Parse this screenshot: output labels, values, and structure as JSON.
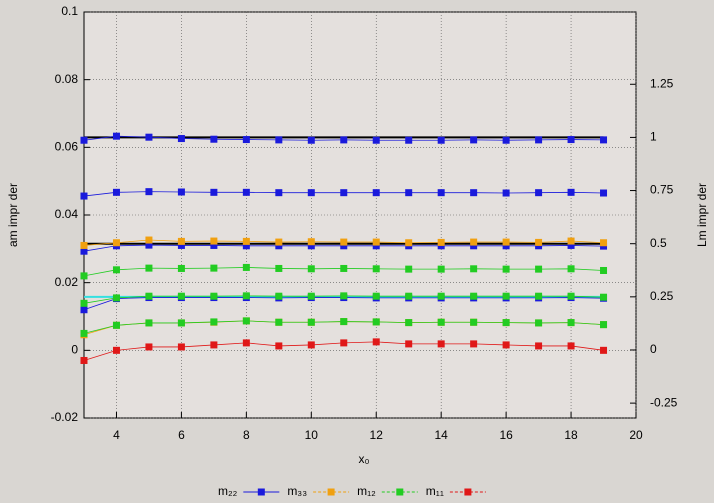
{
  "chart_data": {
    "type": "linespoints",
    "xlabel": "x₀",
    "ylabel": "am impr der",
    "y2label": "Lm impr der",
    "x": [
      3,
      4,
      5,
      6,
      7,
      8,
      9,
      10,
      11,
      12,
      13,
      14,
      15,
      16,
      17,
      18,
      19
    ],
    "xlim": [
      3,
      20
    ],
    "xticks": [
      4,
      6,
      8,
      10,
      12,
      14,
      16,
      18,
      20
    ],
    "ylim": [
      -0.02,
      0.1
    ],
    "yticks": [
      -0.02,
      0,
      0.02,
      0.04,
      0.06,
      0.08,
      0.1
    ],
    "y2lim": [
      -0.32,
      1.59
    ],
    "y2ticks": [
      -0.25,
      0,
      0.25,
      0.5,
      0.75,
      1,
      1.25
    ],
    "grid": true,
    "hlines": [
      {
        "value": 1,
        "color": "#000000"
      },
      {
        "value": 0.5,
        "color": "#000000"
      },
      {
        "value": 0.25,
        "color": "#33e0e0"
      }
    ],
    "series": [
      {
        "name": "m₂₂",
        "color": "#1a1adc",
        "values": [
          [
            0.0621,
            0.0633,
            0.063,
            0.0626,
            0.0624,
            0.0623,
            0.0622,
            0.0621,
            0.0622,
            0.0621,
            0.0621,
            0.0621,
            0.0622,
            0.0621,
            0.0622,
            0.0623,
            0.0622
          ],
          [
            0.0456,
            0.0467,
            0.0469,
            0.0468,
            0.0467,
            0.0467,
            0.0466,
            0.0466,
            0.0466,
            0.0466,
            0.0466,
            0.0466,
            0.0466,
            0.0465,
            0.0466,
            0.0467,
            0.0465
          ],
          [
            0.0293,
            0.0309,
            0.0311,
            0.031,
            0.031,
            0.0309,
            0.0309,
            0.0309,
            0.0309,
            0.0309,
            0.0309,
            0.0309,
            0.0309,
            0.0309,
            0.0309,
            0.031,
            0.0308
          ],
          [
            0.012,
            0.0153,
            0.0156,
            0.0156,
            0.0156,
            0.0156,
            0.0155,
            0.0156,
            0.0156,
            0.0155,
            0.0155,
            0.0155,
            0.0155,
            0.0155,
            0.0155,
            0.0156,
            0.0154
          ]
        ]
      },
      {
        "name": "m₃₃",
        "color": "#f0a010",
        "values": [
          [
            0.031,
            0.0318,
            0.0326,
            0.0322,
            0.0323,
            0.0322,
            0.032,
            0.0321,
            0.032,
            0.032,
            0.0318,
            0.0319,
            0.032,
            0.032,
            0.0319,
            0.0323,
            0.0318
          ],
          [
            0.0046,
            0.0074,
            0.0081,
            0.0081,
            0.0083,
            0.0087,
            0.0083,
            0.0083,
            0.0085,
            0.0084,
            0.0082,
            0.0083,
            0.0083,
            0.0082,
            0.0081,
            0.0082,
            0.0076
          ]
        ]
      },
      {
        "name": "m₁₂",
        "color": "#22cc22",
        "values": [
          [
            0.022,
            0.0238,
            0.0243,
            0.0242,
            0.0243,
            0.0245,
            0.0242,
            0.0241,
            0.0242,
            0.0241,
            0.024,
            0.024,
            0.0241,
            0.024,
            0.024,
            0.0241,
            0.0236
          ],
          [
            0.0139,
            0.0155,
            0.016,
            0.016,
            0.016,
            0.0161,
            0.016,
            0.016,
            0.0161,
            0.016,
            0.016,
            0.016,
            0.016,
            0.016,
            0.016,
            0.016,
            0.0157
          ],
          [
            0.005,
            0.0074,
            0.0081,
            0.0081,
            0.0084,
            0.0087,
            0.0083,
            0.0083,
            0.0085,
            0.0084,
            0.0082,
            0.0083,
            0.0083,
            0.0082,
            0.0081,
            0.0082,
            0.0076
          ]
        ]
      },
      {
        "name": "m₁₁",
        "color": "#e01818",
        "values": [
          [
            -0.003,
            0.0,
            0.001,
            0.001,
            0.0016,
            0.0022,
            0.0013,
            0.0016,
            0.0022,
            0.0025,
            0.0019,
            0.0019,
            0.0019,
            0.0016,
            0.0013,
            0.0013,
            0.0
          ]
        ]
      }
    ]
  }
}
